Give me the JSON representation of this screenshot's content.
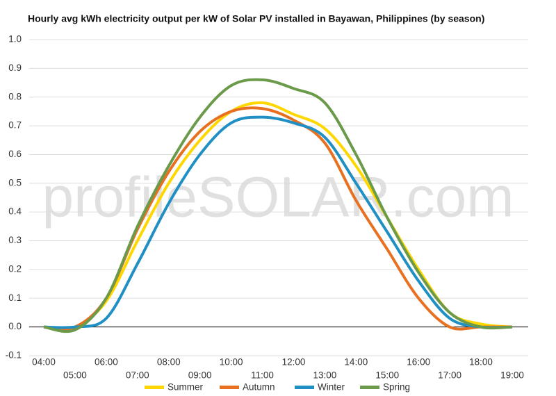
{
  "chart_data": {
    "type": "line",
    "title": "Hourly avg kWh electricity output per kW of Solar PV installed in Bayawan, Philippines (by season)",
    "watermark": "profileSOLAR.com",
    "categories": [
      "04:00",
      "05:00",
      "06:00",
      "07:00",
      "08:00",
      "09:00",
      "10:00",
      "11:00",
      "12:00",
      "13:00",
      "14:00",
      "15:00",
      "16:00",
      "17:00",
      "18:00",
      "19:00"
    ],
    "series": [
      {
        "name": "Summer",
        "color": "#ffd700",
        "values": [
          0,
          0,
          0.09,
          0.3,
          0.5,
          0.65,
          0.75,
          0.78,
          0.74,
          0.69,
          0.56,
          0.38,
          0.2,
          0.05,
          0.01,
          0
        ]
      },
      {
        "name": "Autumn",
        "color": "#e87121",
        "values": [
          0,
          0,
          0.1,
          0.34,
          0.54,
          0.68,
          0.75,
          0.76,
          0.72,
          0.64,
          0.44,
          0.27,
          0.1,
          0,
          0,
          0
        ]
      },
      {
        "name": "Winter",
        "color": "#1f8fc4",
        "values": [
          0,
          0,
          0.03,
          0.22,
          0.43,
          0.6,
          0.71,
          0.73,
          0.71,
          0.66,
          0.5,
          0.33,
          0.16,
          0.03,
          0,
          0
        ]
      },
      {
        "name": "Spring",
        "color": "#6b9a4a",
        "values": [
          0,
          -0.01,
          0.1,
          0.35,
          0.56,
          0.73,
          0.84,
          0.86,
          0.83,
          0.78,
          0.6,
          0.38,
          0.19,
          0.05,
          0,
          0
        ]
      }
    ],
    "ylim": [
      -0.1,
      1.0
    ],
    "yticks": [
      -0.1,
      {
        "value": 0,
        "label": "0.0"
      },
      0.1,
      0.2,
      0.3,
      0.4,
      0.5,
      0.6,
      0.7,
      0.8,
      0.9,
      {
        "value": 1,
        "label": "1.0"
      }
    ],
    "grid": true,
    "legend": "bottom"
  }
}
